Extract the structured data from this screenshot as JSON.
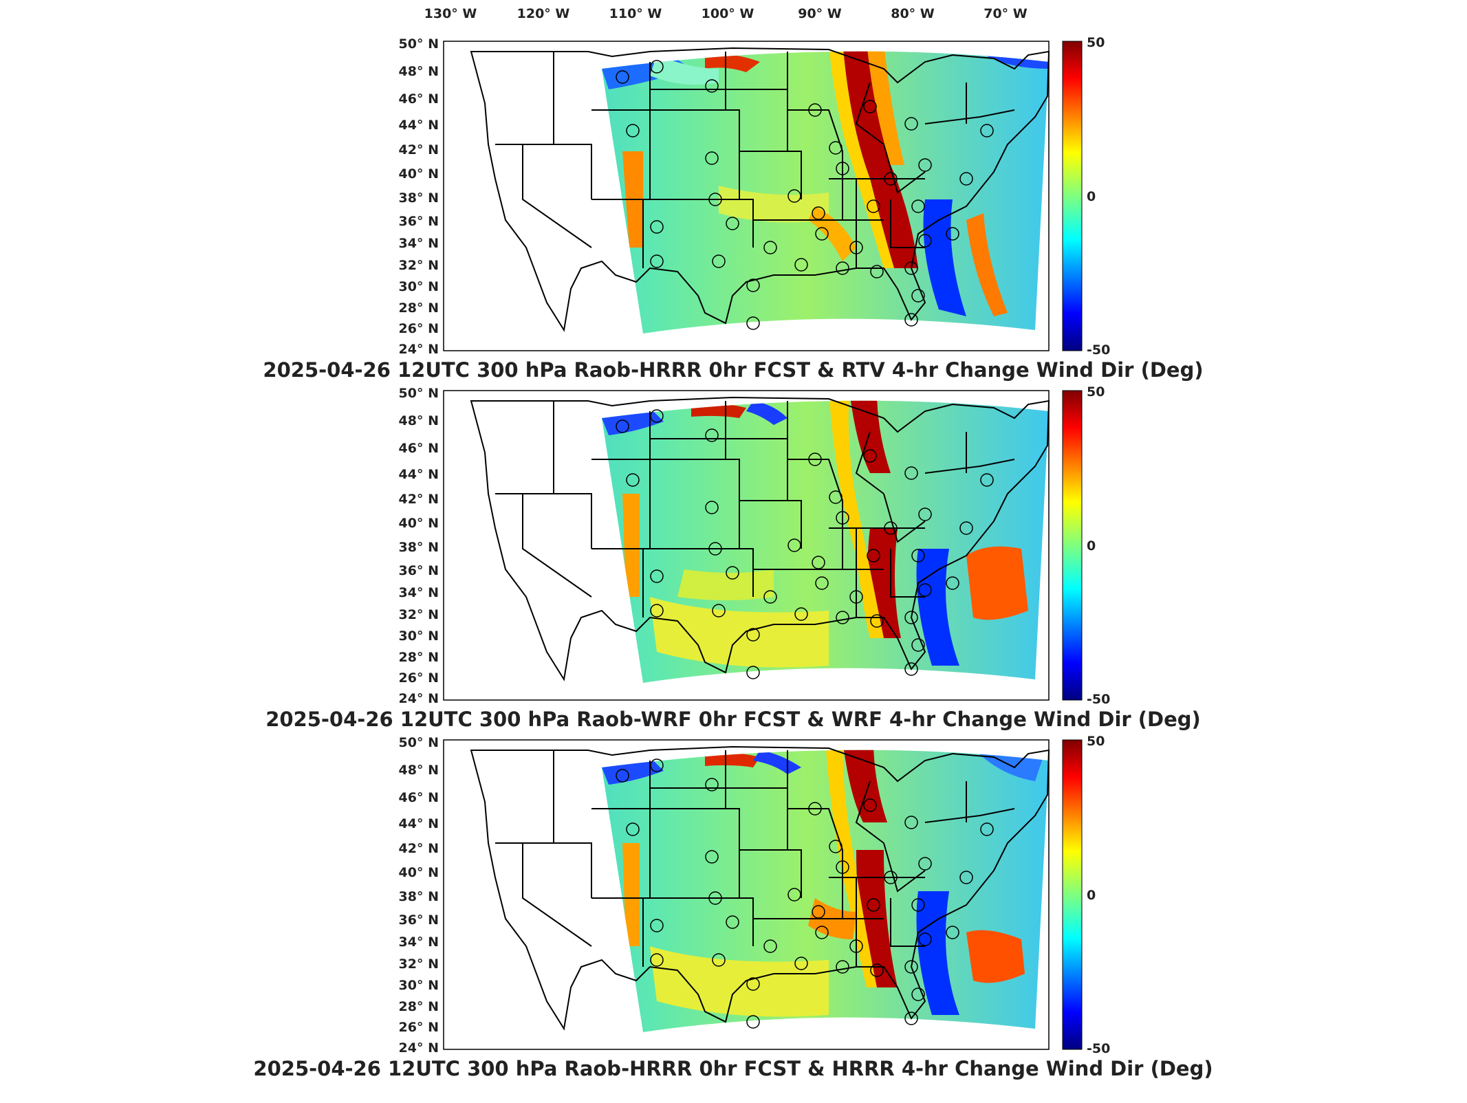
{
  "lon_labels": [
    "130° W",
    "120° W",
    "110° W",
    "100° W",
    "90° W",
    "80° W",
    "70° W"
  ],
  "lat_labels": [
    "50° N",
    "48° N",
    "46° N",
    "44° N",
    "42° N",
    "40° N",
    "38° N",
    "36° N",
    "34° N",
    "32° N",
    "30° N",
    "28° N",
    "26° N",
    "24° N"
  ],
  "colorbar": {
    "max_label": "50",
    "mid_label": "0",
    "min_label": "-50",
    "range": [
      -50,
      50
    ],
    "colormap": "jet"
  },
  "colors": {
    "dark_red": "#7f0000",
    "red": "#ff0000",
    "orange": "#ff8c00",
    "yellow": "#ffff00",
    "green": "#7fff7f",
    "cyan": "#00ffff",
    "blue": "#0000ff",
    "dark_blue": "#00007f"
  },
  "panels": [
    {
      "title": "2025-04-26 12UTC 300 hPa Raob-HRRR 0hr FCST & RTV 4-hr Change Wind Dir (Deg)"
    },
    {
      "title": "2025-04-26 12UTC 300 hPa Raob-WRF 0hr FCST & WRF 4-hr Change Wind Dir (Deg)"
    },
    {
      "title": "2025-04-26 12UTC 300 hPa Raob-HRRR 0hr FCST & HRRR 4-hr Change Wind Dir (Deg)"
    }
  ]
}
